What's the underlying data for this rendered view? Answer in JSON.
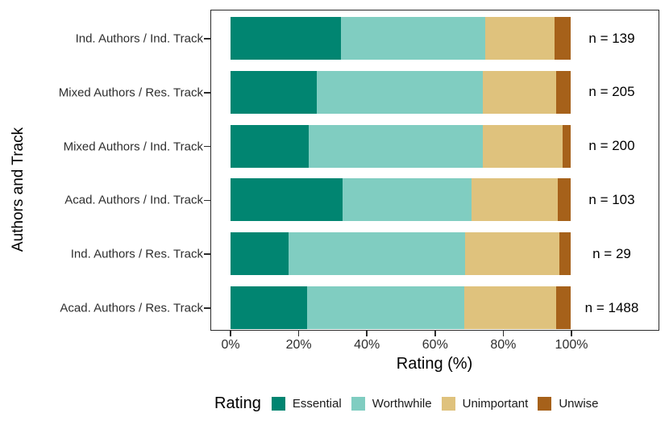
{
  "chart_data": {
    "type": "bar",
    "variant": "horizontal_stacked_percent",
    "title": "",
    "xlabel": "Rating (%)",
    "ylabel": "Authors and Track",
    "xlim": [
      0,
      100
    ],
    "grid": false,
    "x_ticks": [
      {
        "label": "0%",
        "value": 0
      },
      {
        "label": "20%",
        "value": 20
      },
      {
        "label": "40%",
        "value": 40
      },
      {
        "label": "60%",
        "value": 60
      },
      {
        "label": "80%",
        "value": 80
      },
      {
        "label": "100%",
        "value": 100
      }
    ],
    "legend": {
      "title": "Rating",
      "position": "bottom"
    },
    "series": [
      {
        "name": "Essential",
        "color": "#018571"
      },
      {
        "name": "Worthwhile",
        "color": "#80cdc1"
      },
      {
        "name": "Unimportant",
        "color": "#dfc27d"
      },
      {
        "name": "Unwise",
        "color": "#a6611a"
      }
    ],
    "categories": [
      "Ind. Authors / Ind. Track",
      "Mixed Authors / Res. Track",
      "Mixed Authors / Ind. Track",
      "Acad. Authors / Ind. Track",
      "Ind. Authors / Res. Track",
      "Acad. Authors / Res. Track"
    ],
    "rows": [
      {
        "category": "Ind. Authors / Ind. Track",
        "n_label": "n = 139",
        "n": 139,
        "values": [
          32.4,
          42.4,
          20.4,
          4.8
        ]
      },
      {
        "category": "Mixed Authors / Res. Track",
        "n_label": "n = 205",
        "n": 205,
        "values": [
          25.4,
          48.8,
          21.5,
          4.3
        ]
      },
      {
        "category": "Mixed Authors / Ind. Track",
        "n_label": "n = 200",
        "n": 200,
        "values": [
          23.0,
          51.0,
          23.5,
          2.5
        ]
      },
      {
        "category": "Acad. Authors / Ind. Track",
        "n_label": "n = 103",
        "n": 103,
        "values": [
          33.0,
          37.9,
          25.2,
          3.9
        ]
      },
      {
        "category": "Ind. Authors / Res. Track",
        "n_label": "n = 29",
        "n": 29,
        "values": [
          17.2,
          51.7,
          27.6,
          3.4
        ]
      },
      {
        "category": "Acad. Authors / Res. Track",
        "n_label": "n = 1488",
        "n": 1488,
        "values": [
          22.6,
          46.1,
          27.0,
          4.3
        ]
      }
    ]
  },
  "colors": {
    "background": "#ffffff",
    "panel_border": "#2b2b2b",
    "axis_text": "#2e2e2e",
    "label_text": "#000000"
  }
}
